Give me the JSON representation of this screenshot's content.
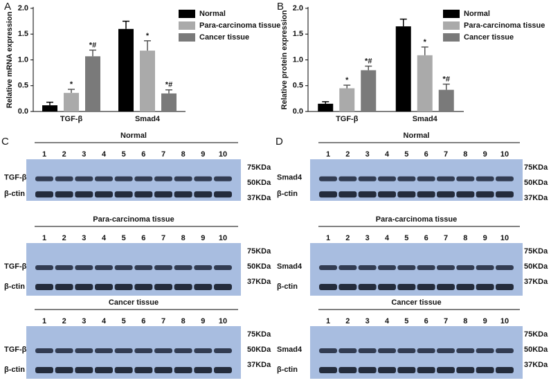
{
  "chart_data": [
    {
      "type": "bar",
      "panel": "A",
      "ylabel": "Relative mRNA expression",
      "categories": [
        "TGF-β",
        "Smad4"
      ],
      "series": [
        {
          "name": "Normal",
          "color": "#000000",
          "values": [
            0.12,
            1.6
          ],
          "errors": [
            0.06,
            0.15
          ]
        },
        {
          "name": "Para-carcinoma tissue",
          "color": "#aaaaaa",
          "values": [
            0.36,
            1.18
          ],
          "errors": [
            0.07,
            0.19
          ],
          "annotations": [
            "*",
            "*"
          ]
        },
        {
          "name": "Cancer tissue",
          "color": "#7a7a7a",
          "values": [
            1.07,
            0.35
          ],
          "errors": [
            0.12,
            0.07
          ],
          "annotations": [
            "*#",
            "*#"
          ]
        }
      ],
      "ylim": [
        0,
        2.0
      ],
      "yticks": [
        {
          "value": 0,
          "label": "0.0"
        },
        0.5,
        {
          "value": 1,
          "label": "1.0"
        },
        1.5,
        {
          "value": 2,
          "label": "2.0"
        }
      ]
    },
    {
      "type": "bar",
      "panel": "B",
      "ylabel": "Relative protein expression",
      "categories": [
        "TGF-β",
        "Smad4"
      ],
      "series": [
        {
          "name": "Normal",
          "color": "#000000",
          "values": [
            0.15,
            1.65
          ],
          "errors": [
            0.04,
            0.14
          ]
        },
        {
          "name": "Para-carcinoma tissue",
          "color": "#aaaaaa",
          "values": [
            0.45,
            1.09
          ],
          "errors": [
            0.06,
            0.16
          ],
          "annotations": [
            "*",
            "*"
          ]
        },
        {
          "name": "Cancer tissue",
          "color": "#7a7a7a",
          "values": [
            0.8,
            0.42
          ],
          "errors": [
            0.08,
            0.11
          ],
          "annotations": [
            "*#",
            "*#"
          ]
        }
      ],
      "ylim": [
        0,
        2.0
      ],
      "yticks": [
        {
          "value": 0,
          "label": "0.0"
        },
        0.5,
        {
          "value": 1,
          "label": "1.0"
        },
        1.5,
        {
          "value": 2,
          "label": "2.0"
        }
      ]
    }
  ],
  "blots": [
    {
      "panel": "C",
      "protein": "TGF-β",
      "loading": "β-ctin",
      "groups": [
        "Normal",
        "Para-carcinoma tissue",
        "Cancer tissue"
      ],
      "lanes": [
        1,
        2,
        3,
        4,
        5,
        6,
        7,
        8,
        9,
        10
      ],
      "markers": [
        "75KDa",
        "50KDa",
        "37KDa"
      ]
    },
    {
      "panel": "D",
      "protein": "Smad4",
      "loading": "β-ctin",
      "groups": [
        "Normal",
        "Para-carcinoma tissue",
        "Cancer tissue"
      ],
      "lanes": [
        1,
        2,
        3,
        4,
        5,
        6,
        7,
        8,
        9,
        10
      ],
      "markers": [
        "75KDa",
        "50KDa",
        "37KDa"
      ]
    }
  ]
}
